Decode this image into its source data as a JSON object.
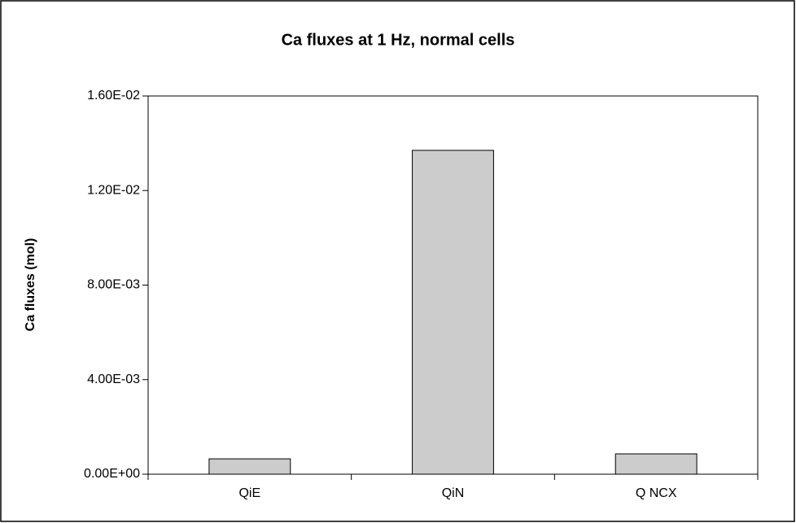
{
  "chart_data": {
    "type": "bar",
    "title": "Ca fluxes at 1 Hz, normal cells",
    "y_label": "Ca fluxes (mol)",
    "categories": [
      "QiE",
      "QiN",
      "Q NCX"
    ],
    "values": [
      0.00065,
      0.0137,
      0.00086
    ],
    "color": "#cccccc",
    "ylim": [
      0,
      0.016
    ],
    "yticks": [
      {
        "value": 0,
        "label": "0.00E+00"
      },
      {
        "value": 0.004,
        "label": "4.00E-03"
      },
      {
        "value": 0.008,
        "label": "8.00E-03"
      },
      {
        "value": 0.012,
        "label": "1.20E-02"
      },
      {
        "value": 0.016,
        "label": "1.60E-02"
      }
    ],
    "grid": false
  }
}
